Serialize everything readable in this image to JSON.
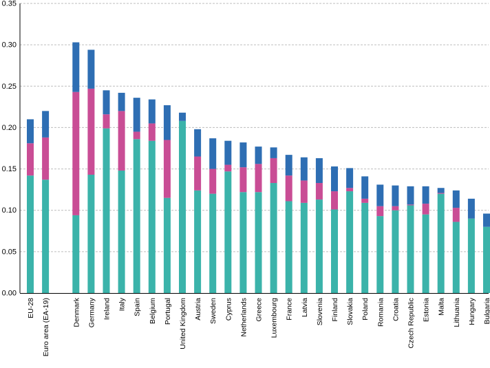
{
  "chart_data": {
    "type": "bar",
    "stacked": true,
    "title": "",
    "xlabel": "",
    "ylabel": "",
    "ylim": [
      0,
      0.35
    ],
    "yticks": [
      "0.00",
      "0.05",
      "0.10",
      "0.15",
      "0.20",
      "0.25",
      "0.30",
      "0.35"
    ],
    "grid": "horizontal dashed",
    "legend": "none",
    "categories": [
      "EU-28",
      "Euro area (EA-19)",
      "",
      "Denmark",
      "Germany",
      "Ireland",
      "Italy",
      "Spain",
      "Belgium",
      "Portugal",
      "United Kingdom",
      "Austria",
      "Sweden",
      "Cyprus",
      "Netherlands",
      "Greece",
      "Luxembourg",
      "France",
      "Latvia",
      "Slovenia",
      "Finland",
      "Slovakia",
      "Poland",
      "Romania",
      "Croatia",
      "Czech Republic",
      "Estonia",
      "Malta",
      "Lithuania",
      "Hungary",
      "Bulgaria"
    ],
    "series": [
      {
        "color": "#3BB3AA",
        "values": [
          0.142,
          0.137,
          null,
          0.094,
          0.143,
          0.199,
          0.148,
          0.186,
          0.184,
          0.115,
          0.208,
          0.124,
          0.12,
          0.147,
          0.122,
          0.122,
          0.133,
          0.111,
          0.109,
          0.113,
          0.101,
          0.123,
          0.109,
          0.093,
          0.1,
          0.106,
          0.095,
          0.12,
          0.086,
          0.09,
          0.08
        ]
      },
      {
        "color": "#C94D95",
        "values": [
          0.039,
          0.051,
          null,
          0.149,
          0.104,
          0.017,
          0.072,
          0.009,
          0.021,
          0.07,
          0.0,
          0.041,
          0.03,
          0.008,
          0.03,
          0.034,
          0.03,
          0.031,
          0.027,
          0.02,
          0.022,
          0.004,
          0.005,
          0.012,
          0.005,
          0.001,
          0.013,
          0.001,
          0.017,
          0.0,
          0.0
        ]
      },
      {
        "color": "#2E6EB3",
        "values": [
          0.029,
          0.032,
          null,
          0.06,
          0.047,
          0.029,
          0.022,
          0.041,
          0.029,
          0.042,
          0.01,
          0.033,
          0.037,
          0.029,
          0.03,
          0.021,
          0.013,
          0.025,
          0.028,
          0.03,
          0.03,
          0.024,
          0.027,
          0.026,
          0.025,
          0.022,
          0.021,
          0.006,
          0.021,
          0.024,
          0.016
        ]
      }
    ]
  }
}
